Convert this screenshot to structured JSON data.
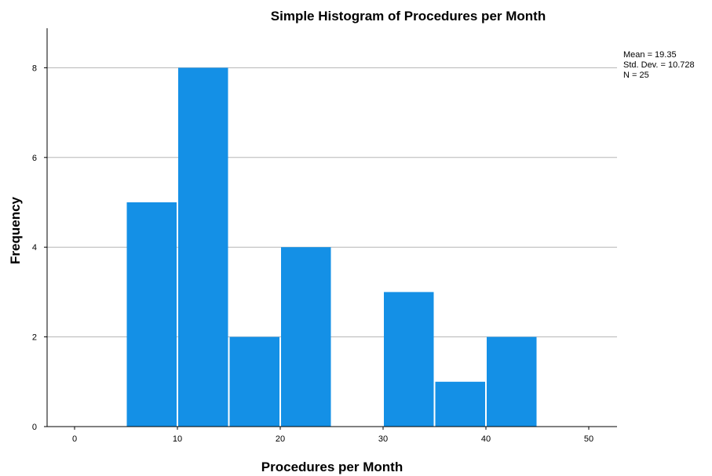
{
  "chart_data": {
    "type": "bar",
    "title": "Simple Histogram of Procedures per Month",
    "xlabel": "Procedures per Month",
    "ylabel": "Frequency",
    "bins": [
      {
        "start": 5,
        "end": 10,
        "count": 5
      },
      {
        "start": 10,
        "end": 15,
        "count": 8
      },
      {
        "start": 15,
        "end": 20,
        "count": 2
      },
      {
        "start": 20,
        "end": 25,
        "count": 4
      },
      {
        "start": 25,
        "end": 30,
        "count": 0
      },
      {
        "start": 30,
        "end": 35,
        "count": 3
      },
      {
        "start": 35,
        "end": 40,
        "count": 1
      },
      {
        "start": 40,
        "end": 45,
        "count": 2
      }
    ],
    "xlim": [
      -2.5,
      52.5
    ],
    "ylim": [
      0,
      8.9
    ],
    "x_ticks": [
      0,
      10,
      20,
      30,
      40,
      50
    ],
    "y_ticks": [
      0,
      2,
      4,
      6,
      8
    ],
    "grid": "horizontal",
    "bar_color": "#1490e6",
    "stats": {
      "mean": "Mean = 19.35",
      "std_dev": "Std. Dev. = 10.728",
      "n": "N = 25"
    },
    "stats_placement": "top-right"
  }
}
